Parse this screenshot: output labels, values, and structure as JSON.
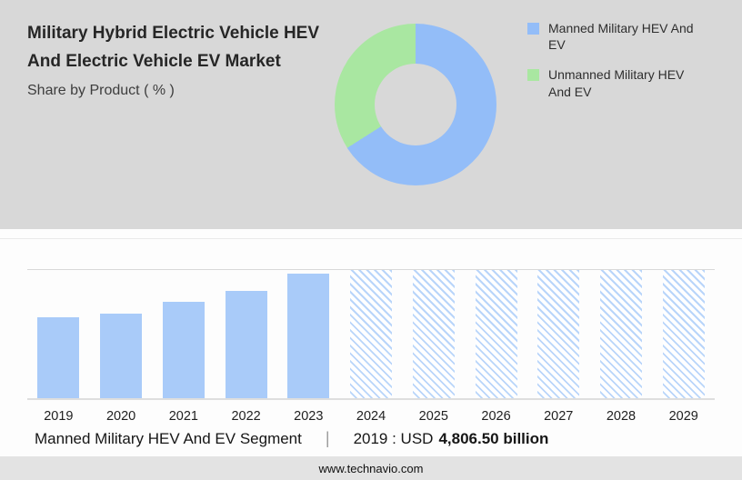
{
  "header": {
    "title": "Military Hybrid Electric Vehicle HEV And Electric Vehicle EV Market",
    "subtitle": "Share by Product ( % )"
  },
  "chart_data": [
    {
      "type": "pie",
      "donut": true,
      "title": "Share by Product ( % )",
      "labels": [
        "Manned Military HEV And EV",
        "Unmanned Military HEV And EV"
      ],
      "values": [
        66,
        34
      ],
      "colors": [
        "#93bdf8",
        "#a9e7a1"
      ],
      "legend_position": "right",
      "note": "slice percentages estimated from arc angles; no numeric labels shown in image"
    },
    {
      "type": "bar",
      "categories": [
        "2019",
        "2020",
        "2021",
        "2022",
        "2023",
        "2024",
        "2025",
        "2026",
        "2027",
        "2028",
        "2029"
      ],
      "values": [
        4806.5,
        5040,
        5720,
        6410,
        7400,
        null,
        null,
        null,
        null,
        null,
        null
      ],
      "relative_heights": [
        0.63,
        0.66,
        0.75,
        0.84,
        0.97,
        1,
        1,
        1,
        1,
        1,
        1
      ],
      "forecast": [
        false,
        false,
        false,
        false,
        false,
        true,
        true,
        true,
        true,
        true,
        true
      ],
      "bar_color": "#a9cbf9",
      "hatch_color": "#b9d5fa",
      "xlabel": "",
      "ylabel": "",
      "grid": "top rule and baseline only, no y-axis tick labels",
      "note": "only 2019 value labeled (USD 4,806.50 billion); 2020-2023 estimated from bar heights; 2024-2029 drawn as full-height hatched forecast placeholders"
    }
  ],
  "caption": {
    "segment": "Manned Military HEV And EV Segment",
    "separator": "|",
    "year_label": "2019 : USD",
    "value": "4,806.50 billion"
  },
  "footer": {
    "url": "www.technavio.com"
  }
}
